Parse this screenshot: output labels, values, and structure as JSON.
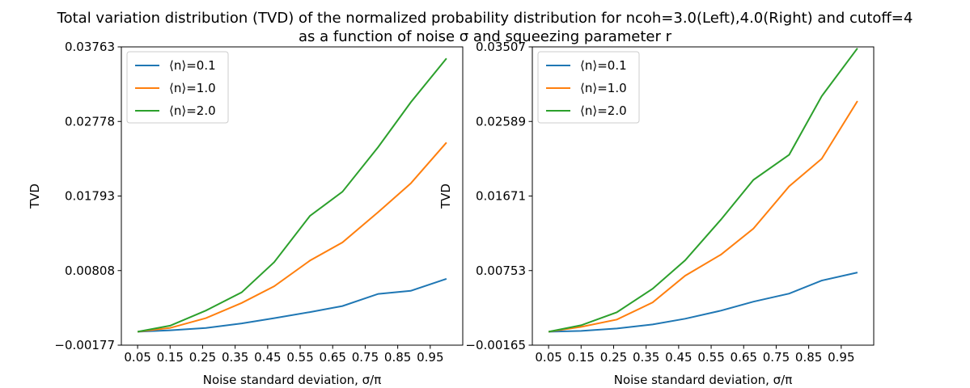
{
  "figure": {
    "title_line1": "Total variation distribution (TVD) of the normalized probability distribution for ncoh=3.0(Left),4.0(Right) and cutoff=4",
    "title_line2": "as a function of noise σ and squeezing parameter r"
  },
  "colors": {
    "series": [
      "#1f77b4",
      "#ff7f0e",
      "#2ca02c"
    ]
  },
  "chart_data": [
    {
      "type": "line",
      "xlabel": "Noise standard deviation, σ/π",
      "ylabel": "TVD",
      "legend_position": "top-left",
      "grid": false,
      "x": [
        0.05,
        0.15,
        0.26,
        0.37,
        0.47,
        0.58,
        0.68,
        0.79,
        0.89,
        1.0
      ],
      "xticks": [
        "0.05",
        "0.15",
        "0.25",
        "0.35",
        "0.45",
        "0.55",
        "0.65",
        "0.75",
        "0.85",
        "0.95"
      ],
      "xtick_values": [
        0.05,
        0.15,
        0.25,
        0.35,
        0.45,
        0.55,
        0.65,
        0.75,
        0.85,
        0.95
      ],
      "xlim": [
        0.0,
        1.05
      ],
      "yticks": [
        "−0.00177",
        "0.00808",
        "0.01793",
        "0.02778",
        "0.03763"
      ],
      "ytick_values": [
        -0.00177,
        0.00808,
        0.01793,
        0.02778,
        0.03763
      ],
      "ylim": [
        -0.00177,
        0.03763
      ],
      "series": [
        {
          "name": "⟨n⟩=0.1",
          "values": [
            0.0,
            0.0002,
            0.0005,
            0.0011,
            0.0018,
            0.0026,
            0.0034,
            0.005,
            0.0054,
            0.007
          ]
        },
        {
          "name": "⟨n⟩=1.0",
          "values": [
            0.0,
            0.0005,
            0.0018,
            0.0038,
            0.006,
            0.0094,
            0.0118,
            0.0158,
            0.0196,
            0.025
          ]
        },
        {
          "name": "⟨n⟩=2.0",
          "values": [
            0.0,
            0.0008,
            0.0028,
            0.0052,
            0.0092,
            0.0153,
            0.0185,
            0.0244,
            0.0303,
            0.0361
          ]
        }
      ]
    },
    {
      "type": "line",
      "xlabel": "Noise standard deviation, σ/π",
      "ylabel": "TVD",
      "legend_position": "top-left",
      "grid": false,
      "x": [
        0.05,
        0.15,
        0.26,
        0.37,
        0.47,
        0.58,
        0.68,
        0.79,
        0.89,
        1.0
      ],
      "xticks": [
        "0.05",
        "0.15",
        "0.25",
        "0.35",
        "0.45",
        "0.55",
        "0.65",
        "0.75",
        "0.85",
        "0.95"
      ],
      "xtick_values": [
        0.05,
        0.15,
        0.25,
        0.35,
        0.45,
        0.55,
        0.65,
        0.75,
        0.85,
        0.95
      ],
      "xlim": [
        0.0,
        1.05
      ],
      "yticks": [
        "−0.00165",
        "0.00753",
        "0.01671",
        "0.02589",
        "0.03507"
      ],
      "ytick_values": [
        -0.00165,
        0.00753,
        0.01671,
        0.02589,
        0.03507
      ],
      "ylim": [
        -0.00165,
        0.03507
      ],
      "series": [
        {
          "name": "⟨n⟩=0.1",
          "values": [
            0.0,
            0.0001,
            0.0004,
            0.0009,
            0.0016,
            0.0026,
            0.0037,
            0.0047,
            0.0063,
            0.0073
          ]
        },
        {
          "name": "⟨n⟩=1.0",
          "values": [
            0.0,
            0.0006,
            0.0015,
            0.0036,
            0.0069,
            0.0095,
            0.0127,
            0.0179,
            0.0213,
            0.0284
          ]
        },
        {
          "name": "⟨n⟩=2.0",
          "values": [
            0.0,
            0.0008,
            0.0024,
            0.0053,
            0.0088,
            0.0138,
            0.0187,
            0.0218,
            0.029,
            0.0349
          ]
        }
      ]
    }
  ]
}
